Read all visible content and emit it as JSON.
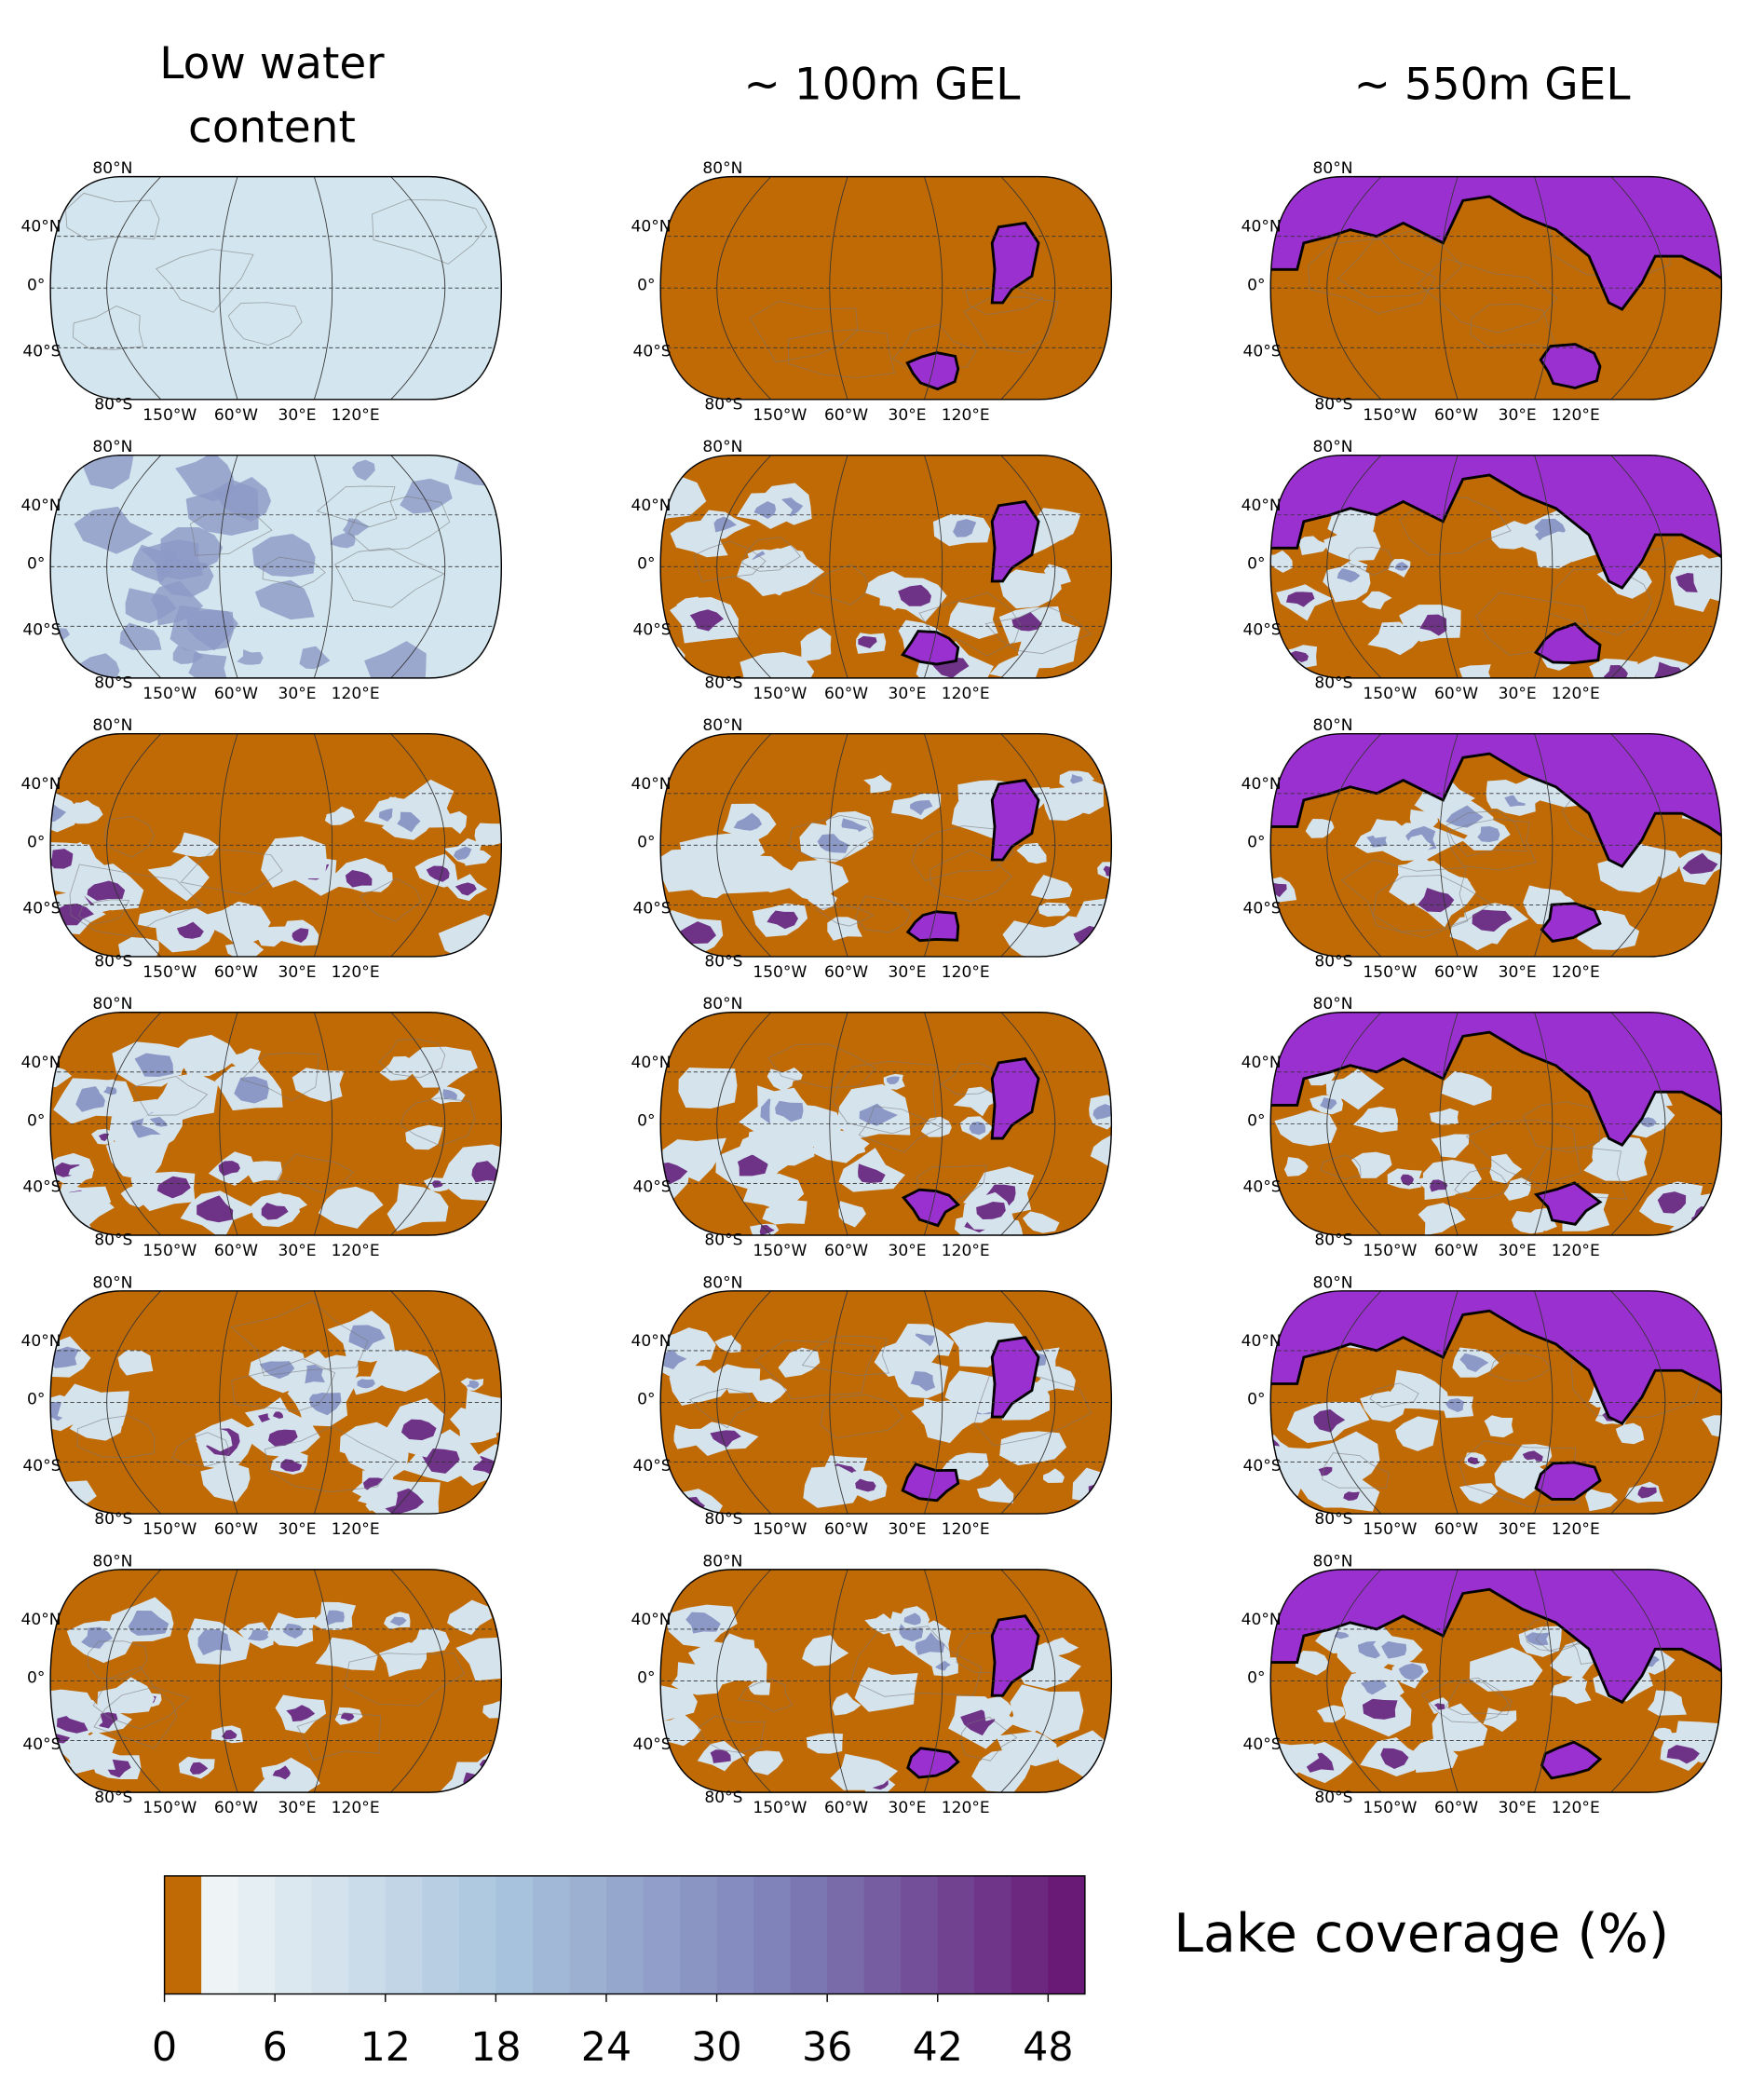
{
  "columns": [
    {
      "title_lines": [
        "Low water",
        "content"
      ]
    },
    {
      "title_lines": [
        "~ 100m GEL"
      ]
    },
    {
      "title_lines": [
        "~ 550m GEL"
      ]
    }
  ],
  "lat_labels": [
    "80°N",
    "40°N",
    "0°",
    "40°S",
    "80°S"
  ],
  "lon_labels": [
    "150°W",
    "60°W",
    "30°E",
    "120°E"
  ],
  "colorbar": {
    "label": "Lake coverage (%)",
    "lim": [
      0,
      50
    ],
    "ticks": [
      0,
      6,
      12,
      18,
      24,
      30,
      36,
      42,
      48
    ],
    "bounds": [
      0,
      2,
      4,
      6,
      8,
      10,
      12,
      14,
      16,
      18,
      20,
      22,
      24,
      26,
      28,
      30,
      32,
      34,
      36,
      38,
      40,
      42,
      44,
      46,
      48,
      50
    ],
    "land_color": "#c06a06",
    "cmap": [
      "#eef4f5",
      "#a9c5de",
      "#7d80b8",
      "#691a77"
    ]
  }
}
